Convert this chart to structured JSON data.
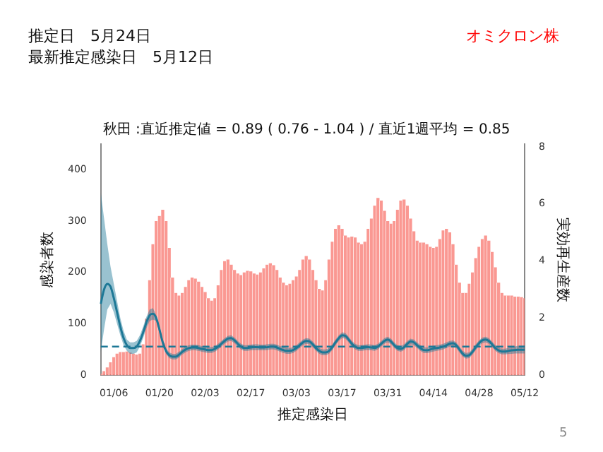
{
  "chart_data": {
    "type": "bar",
    "title": "秋田 :直近推定値 = 0.89 ( 0.76 - 1.04 ) / 直近1週平均 = 0.85",
    "xlabel": "推定感染日",
    "ylabel": "感染者数",
    "y2label": "実効再生産数",
    "annotations": [
      "推定日　5月24日",
      "最新推定感染日　5月12日",
      "オミクロン株",
      "5"
    ],
    "categories": [
      null,
      null,
      null,
      null,
      "01/06",
      null,
      null,
      null,
      null,
      null,
      null,
      null,
      null,
      null,
      null,
      null,
      null,
      null,
      "01/20",
      null,
      null,
      null,
      null,
      null,
      null,
      null,
      null,
      null,
      null,
      null,
      null,
      null,
      "02/03",
      null,
      null,
      null,
      null,
      null,
      null,
      null,
      null,
      null,
      null,
      null,
      null,
      null,
      "02/17",
      null,
      null,
      null,
      null,
      null,
      null,
      null,
      null,
      null,
      null,
      null,
      null,
      null,
      "03/03",
      null,
      null,
      null,
      null,
      null,
      null,
      null,
      null,
      null,
      null,
      null,
      null,
      null,
      "03/17",
      null,
      null,
      null,
      null,
      null,
      null,
      null,
      null,
      null,
      null,
      null,
      null,
      null,
      "03/31",
      null,
      null,
      null,
      null,
      null,
      null,
      null,
      null,
      null,
      null,
      null,
      null,
      null,
      "04/14",
      null,
      null,
      null,
      null,
      null,
      null,
      null,
      null,
      null,
      null,
      null,
      null,
      null,
      "04/28",
      null,
      null,
      null,
      null,
      null,
      null,
      null,
      null,
      null,
      null,
      null,
      null,
      null,
      "05/12"
    ],
    "series": [
      {
        "color": "#f8766d",
        "values": [
          3,
          8,
          15,
          25,
          35,
          42,
          45,
          45,
          46,
          44,
          42,
          40,
          42,
          60,
          110,
          185,
          255,
          300,
          310,
          322,
          300,
          248,
          190,
          160,
          155,
          160,
          172,
          185,
          190,
          188,
          182,
          172,
          162,
          150,
          145,
          150,
          175,
          205,
          222,
          225,
          215,
          205,
          198,
          195,
          200,
          203,
          202,
          198,
          196,
          200,
          208,
          215,
          218,
          214,
          205,
          190,
          180,
          175,
          178,
          185,
          192,
          205,
          225,
          232,
          225,
          205,
          185,
          168,
          165,
          185,
          225,
          260,
          285,
          292,
          285,
          272,
          268,
          270,
          268,
          258,
          255,
          260,
          285,
          305,
          330,
          345,
          340,
          320,
          300,
          295,
          300,
          322,
          340,
          342,
          330,
          305,
          280,
          262,
          258,
          258,
          255,
          250,
          248,
          250,
          265,
          282,
          285,
          278,
          255,
          215,
          180,
          160,
          160,
          178,
          200,
          228,
          250,
          265,
          272,
          262,
          240,
          210,
          180,
          160,
          155,
          155,
          155,
          153,
          153,
          152,
          150
        ]
      },
      {
        "type": "line",
        "axis": "y2",
        "color": "#1d7896",
        "values": [
          2.5,
          3.0,
          3.2,
          3.1,
          2.7,
          2.2,
          1.7,
          1.3,
          1.05,
          0.95,
          0.95,
          1.0,
          1.2,
          1.5,
          1.85,
          2.1,
          2.15,
          2.0,
          1.6,
          1.15,
          0.85,
          0.7,
          0.65,
          0.65,
          0.72,
          0.82,
          0.9,
          0.95,
          0.97,
          0.97,
          0.95,
          0.92,
          0.9,
          0.88,
          0.88,
          0.92,
          1.0,
          1.1,
          1.2,
          1.28,
          1.3,
          1.22,
          1.1,
          1.0,
          0.95,
          0.95,
          0.97,
          0.98,
          0.98,
          0.97,
          0.97,
          0.98,
          1.0,
          1.0,
          0.97,
          0.92,
          0.88,
          0.85,
          0.85,
          0.88,
          0.95,
          1.05,
          1.15,
          1.2,
          1.18,
          1.08,
          0.95,
          0.85,
          0.8,
          0.8,
          0.85,
          0.98,
          1.15,
          1.3,
          1.4,
          1.38,
          1.25,
          1.1,
          1.0,
          0.95,
          0.95,
          0.97,
          0.98,
          0.97,
          0.95,
          1.0,
          1.1,
          1.2,
          1.25,
          1.18,
          1.05,
          0.95,
          0.92,
          0.98,
          1.1,
          1.18,
          1.15,
          1.05,
          0.95,
          0.88,
          0.87,
          0.9,
          0.93,
          0.95,
          0.97,
          1.0,
          1.05,
          1.1,
          1.12,
          1.05,
          0.9,
          0.75,
          0.68,
          0.7,
          0.82,
          0.98,
          1.12,
          1.22,
          1.25,
          1.2,
          1.08,
          0.95,
          0.87,
          0.83,
          0.83,
          0.85,
          0.87,
          0.88,
          0.89,
          0.89,
          0.89
        ],
        "lower": [
          0.8,
          1.6,
          2.3,
          2.5,
          2.2,
          1.8,
          1.4,
          1.05,
          0.85,
          0.75,
          0.75,
          0.8,
          1.0,
          1.3,
          1.65,
          1.9,
          1.95,
          1.9,
          1.5,
          1.05,
          0.75,
          0.6,
          0.55,
          0.55,
          0.62,
          0.72,
          0.8,
          0.85,
          0.87,
          0.87,
          0.85,
          0.82,
          0.8,
          0.78,
          0.78,
          0.82,
          0.9,
          1.0,
          1.1,
          1.18,
          1.2,
          1.12,
          1.0,
          0.9,
          0.85,
          0.85,
          0.87,
          0.88,
          0.88,
          0.87,
          0.87,
          0.88,
          0.9,
          0.9,
          0.87,
          0.82,
          0.78,
          0.75,
          0.75,
          0.78,
          0.85,
          0.95,
          1.05,
          1.1,
          1.08,
          0.98,
          0.85,
          0.75,
          0.7,
          0.7,
          0.75,
          0.88,
          1.05,
          1.2,
          1.3,
          1.28,
          1.15,
          1.0,
          0.9,
          0.85,
          0.85,
          0.87,
          0.88,
          0.87,
          0.85,
          0.9,
          1.0,
          1.1,
          1.15,
          1.08,
          0.95,
          0.85,
          0.82,
          0.88,
          1.0,
          1.08,
          1.05,
          0.95,
          0.85,
          0.78,
          0.77,
          0.8,
          0.83,
          0.85,
          0.87,
          0.9,
          0.95,
          1.0,
          1.02,
          0.95,
          0.8,
          0.65,
          0.58,
          0.6,
          0.72,
          0.88,
          1.02,
          1.12,
          1.15,
          1.1,
          0.98,
          0.85,
          0.77,
          0.73,
          0.73,
          0.74,
          0.75,
          0.76,
          0.76,
          0.76,
          0.76
        ],
        "upper": [
          6.4,
          5.5,
          4.6,
          3.8,
          3.2,
          2.6,
          2.0,
          1.55,
          1.25,
          1.15,
          1.15,
          1.2,
          1.4,
          1.7,
          2.05,
          2.3,
          2.35,
          2.1,
          1.7,
          1.25,
          0.95,
          0.8,
          0.75,
          0.75,
          0.82,
          0.92,
          1.0,
          1.05,
          1.07,
          1.07,
          1.05,
          1.02,
          1.0,
          0.98,
          0.98,
          1.02,
          1.1,
          1.2,
          1.3,
          1.38,
          1.4,
          1.32,
          1.2,
          1.1,
          1.05,
          1.05,
          1.07,
          1.08,
          1.08,
          1.07,
          1.07,
          1.08,
          1.1,
          1.1,
          1.07,
          1.02,
          0.98,
          0.95,
          0.95,
          0.98,
          1.05,
          1.15,
          1.25,
          1.3,
          1.28,
          1.18,
          1.05,
          0.95,
          0.9,
          0.9,
          0.95,
          1.08,
          1.25,
          1.4,
          1.5,
          1.48,
          1.35,
          1.2,
          1.1,
          1.05,
          1.05,
          1.07,
          1.08,
          1.07,
          1.05,
          1.1,
          1.2,
          1.3,
          1.35,
          1.28,
          1.15,
          1.05,
          1.02,
          1.08,
          1.2,
          1.28,
          1.25,
          1.15,
          1.05,
          0.98,
          0.97,
          1.0,
          1.03,
          1.05,
          1.07,
          1.1,
          1.15,
          1.2,
          1.22,
          1.15,
          1.0,
          0.85,
          0.78,
          0.8,
          0.92,
          1.08,
          1.22,
          1.32,
          1.35,
          1.3,
          1.18,
          1.05,
          0.97,
          0.93,
          0.93,
          0.96,
          0.99,
          1.01,
          1.03,
          1.03,
          1.04
        ]
      }
    ],
    "ylim": [
      0,
      450
    ],
    "yticks": [
      0,
      100,
      200,
      300,
      400
    ],
    "y2lim": [
      0,
      8.1
    ],
    "y2ticks": [
      0,
      2,
      4,
      6,
      8
    ],
    "ref_lines": [
      {
        "axis": "y2",
        "value": 1,
        "color": "#1d7896",
        "line_style": "dashed"
      }
    ],
    "marker": "none",
    "line_style": "solid"
  }
}
